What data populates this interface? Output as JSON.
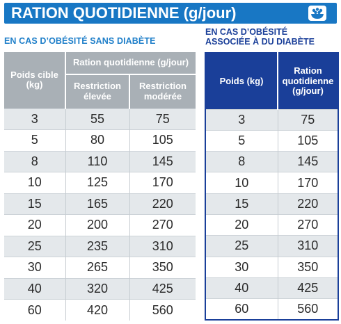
{
  "banner": {
    "title": "RATION QUOTIDIENNE (g/jour)"
  },
  "icons": {
    "banner_icon": "food-bowl-icon"
  },
  "colors": {
    "banner": "#1877c4",
    "right_table": "#1a3f99",
    "left_header": "#a9b0b6",
    "row_shade": "#e4e8eb"
  },
  "left": {
    "subtitle": "EN CAS D’OBÉSITÉ SANS DIABÈTE",
    "header": {
      "poids": "Poids cible (kg)",
      "ration": "Ration quotidienne (g/jour)",
      "restriction_elevee": "Restriction élevée",
      "restriction_moderee": "Restriction modérée"
    },
    "rows": [
      {
        "poids": "3",
        "elevee": "55",
        "moderee": "75"
      },
      {
        "poids": "5",
        "elevee": "80",
        "moderee": "105"
      },
      {
        "poids": "8",
        "elevee": "110",
        "moderee": "145"
      },
      {
        "poids": "10",
        "elevee": "125",
        "moderee": "170"
      },
      {
        "poids": "15",
        "elevee": "165",
        "moderee": "220"
      },
      {
        "poids": "20",
        "elevee": "200",
        "moderee": "270"
      },
      {
        "poids": "25",
        "elevee": "235",
        "moderee": "310"
      },
      {
        "poids": "30",
        "elevee": "265",
        "moderee": "350"
      },
      {
        "poids": "40",
        "elevee": "320",
        "moderee": "425"
      },
      {
        "poids": "60",
        "elevee": "420",
        "moderee": "560"
      }
    ]
  },
  "right": {
    "subtitle_line1": "EN CAS D’OBÉSITÉ",
    "subtitle_line2": "ASSOCIÉE À DU DIABÈTE",
    "header": {
      "poids": "Poids (kg)",
      "ration": "Ration quotidienne (g/jour)"
    },
    "rows": [
      {
        "poids": "3",
        "ration": "75"
      },
      {
        "poids": "5",
        "ration": "105"
      },
      {
        "poids": "8",
        "ration": "145"
      },
      {
        "poids": "10",
        "ration": "170"
      },
      {
        "poids": "15",
        "ration": "220"
      },
      {
        "poids": "20",
        "ration": "270"
      },
      {
        "poids": "25",
        "ration": "310"
      },
      {
        "poids": "30",
        "ration": "350"
      },
      {
        "poids": "40",
        "ration": "425"
      },
      {
        "poids": "60",
        "ration": "560"
      }
    ]
  }
}
